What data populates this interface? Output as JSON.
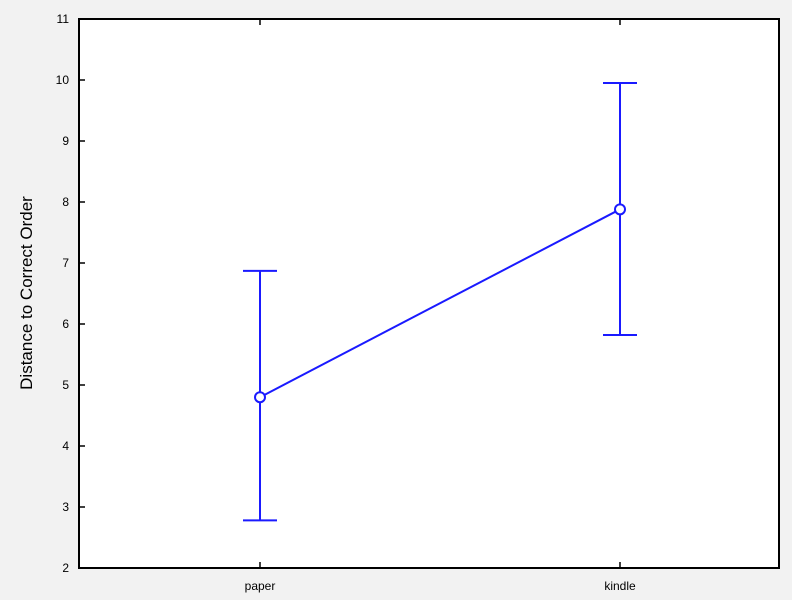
{
  "chart_data": {
    "type": "line",
    "title": "",
    "xlabel": "",
    "ylabel": "Distance to Correct Order",
    "categories": [
      "paper",
      "kindle"
    ],
    "series": [
      {
        "values": [
          4.8,
          7.88
        ],
        "error_low": [
          2.78,
          5.82
        ],
        "error_high": [
          6.87,
          9.95
        ],
        "color": "#1a1aff"
      }
    ],
    "ylim": [
      2,
      11
    ],
    "yticks": [
      "2",
      "3",
      "4",
      "5",
      "6",
      "7",
      "8",
      "9",
      "10",
      "11"
    ],
    "grid": false,
    "legend": "none",
    "colors": {
      "series": "#1a1aff",
      "axis": "#000000",
      "plot_background": "#ffffff",
      "page_background": "#f2f2f2"
    }
  }
}
